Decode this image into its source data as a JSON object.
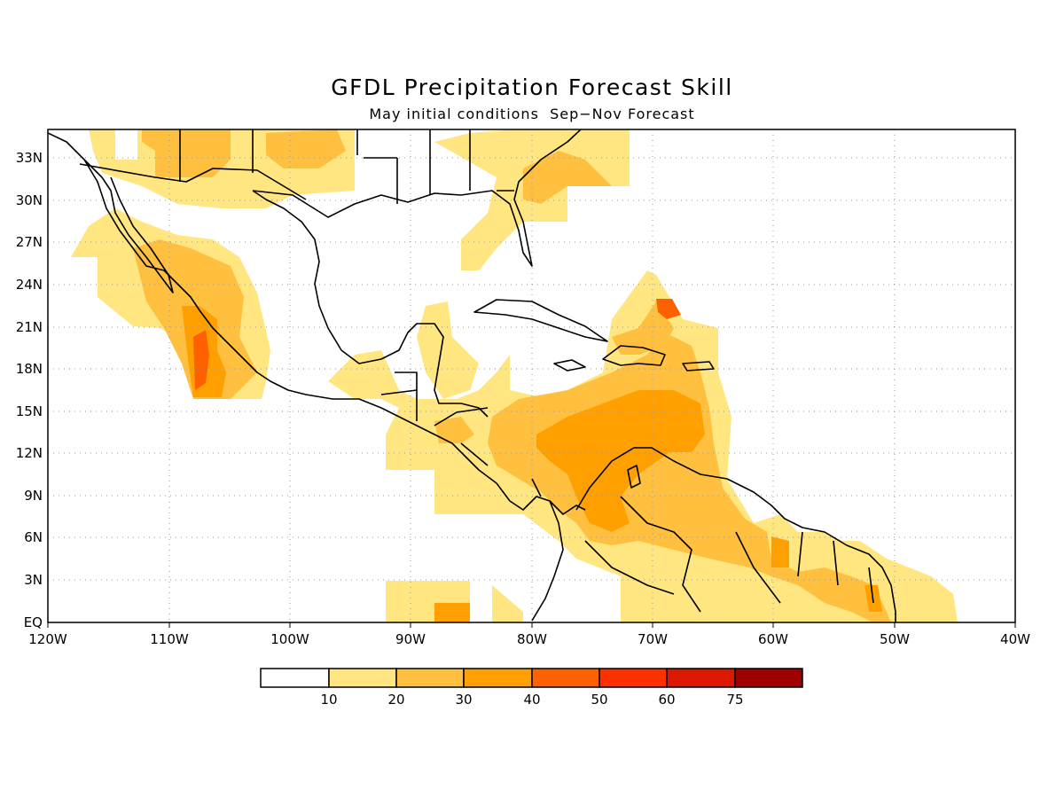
{
  "title": "GFDL Precipitation Forecast Skill",
  "subtitle": "May initial conditions  Sep−Nov Forecast",
  "map": {
    "region": "Caribbean / Central America",
    "lon_range": [
      -120,
      -40
    ],
    "lat_range": [
      0,
      35
    ],
    "grid": true,
    "lon_ticks": [
      "120W",
      "110W",
      "100W",
      "90W",
      "80W",
      "70W",
      "60W",
      "50W",
      "40W"
    ],
    "lat_ticks": [
      "EQ",
      "3N",
      "6N",
      "9N",
      "12N",
      "15N",
      "18N",
      "21N",
      "24N",
      "27N",
      "30N",
      "33N"
    ]
  },
  "legend": {
    "labels": [
      "10",
      "20",
      "30",
      "40",
      "50",
      "60",
      "75"
    ],
    "colors": [
      "#ffffff",
      "#ffe680",
      "#ffc040",
      "#ffa000",
      "#ff6000",
      "#ff3000",
      "#dd1800",
      "#a00000"
    ]
  }
}
